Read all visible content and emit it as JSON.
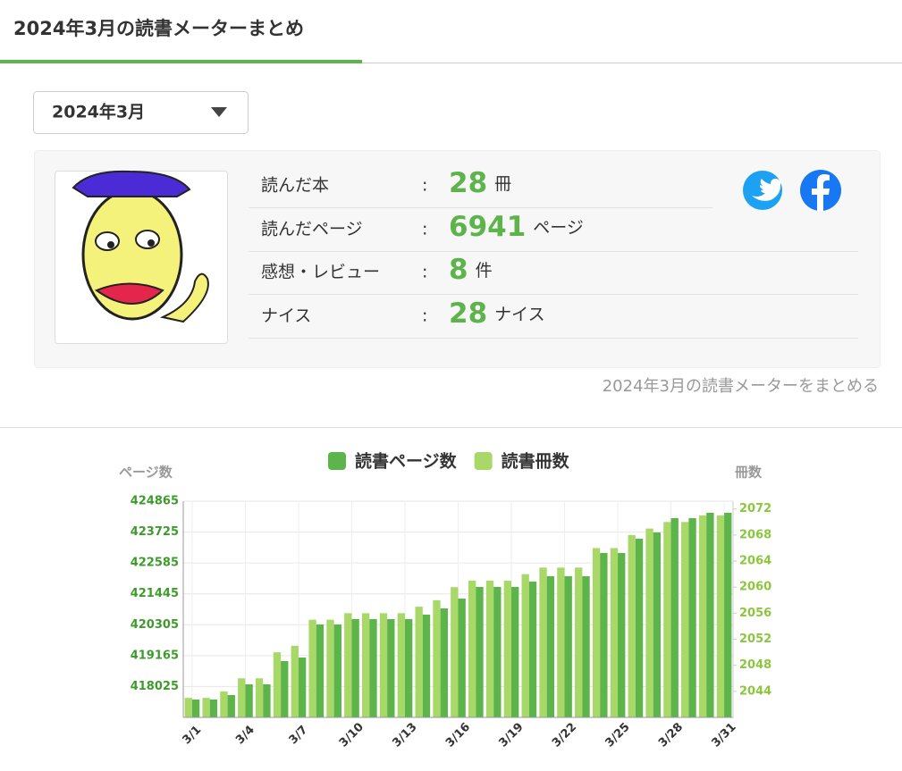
{
  "header": {
    "title": "2024年3月の読書メーターまとめ"
  },
  "dropdown": {
    "label": "2024年3月"
  },
  "summary": {
    "rows": [
      {
        "label": "読んだ本",
        "separator": ":",
        "value": 28,
        "unit": "冊"
      },
      {
        "label": "読んだページ",
        "separator": ":",
        "value": 6941,
        "unit": "ページ"
      },
      {
        "label": "感想・レビュー",
        "separator": ":",
        "value": 8,
        "unit": "件"
      },
      {
        "label": "ナイス",
        "separator": ":",
        "value": 28,
        "unit": "ナイス"
      }
    ]
  },
  "share_link": "2024年3月の読書メーターをまとめる",
  "chart_data": {
    "type": "bar",
    "ylabel": "ページ数",
    "y2label": "冊数",
    "categories": [
      "3/1",
      null,
      null,
      "3/4",
      null,
      null,
      "3/7",
      null,
      null,
      "3/10",
      null,
      null,
      "3/13",
      null,
      null,
      "3/16",
      null,
      null,
      "3/19",
      null,
      null,
      "3/22",
      null,
      null,
      "3/25",
      null,
      null,
      "3/28",
      null,
      null,
      "3/31"
    ],
    "series": [
      {
        "name": "読書ページ数",
        "color": "#5cb44a",
        "axis": "y",
        "values": [
          417545,
          417545,
          417710,
          418105,
          418105,
          418963,
          419095,
          420315,
          420315,
          420513,
          420513,
          420513,
          420513,
          420678,
          420909,
          421271,
          421700,
          421700,
          421700,
          421898,
          422096,
          422096,
          422096,
          422953,
          422953,
          423481,
          423712,
          424240,
          424240,
          424437,
          424437
        ]
      },
      {
        "name": "読書冊数",
        "color": "#a8d868",
        "axis": "y2",
        "values": [
          2043,
          2043,
          2044,
          2046,
          2046,
          2050,
          2051,
          2055,
          2055,
          2056,
          2056,
          2056,
          2056,
          2057,
          2058,
          2060,
          2061,
          2061,
          2061,
          2062,
          2063,
          2063,
          2063,
          2066,
          2066,
          2068,
          2069,
          2070,
          2070,
          2071,
          2071
        ]
      }
    ],
    "ylim": [
      416885,
      424865
    ],
    "yticks": [
      418025,
      419165,
      420305,
      421445,
      422585,
      423725,
      424865
    ],
    "y2lim": [
      2040,
      2073.2
    ],
    "y2ticks": [
      2044,
      2048,
      2052,
      2056,
      2060,
      2064,
      2068,
      2072
    ],
    "ytick_color": "#3d9b2c",
    "y2tick_color": "#8cc63f",
    "grid": true,
    "legend": "top"
  }
}
